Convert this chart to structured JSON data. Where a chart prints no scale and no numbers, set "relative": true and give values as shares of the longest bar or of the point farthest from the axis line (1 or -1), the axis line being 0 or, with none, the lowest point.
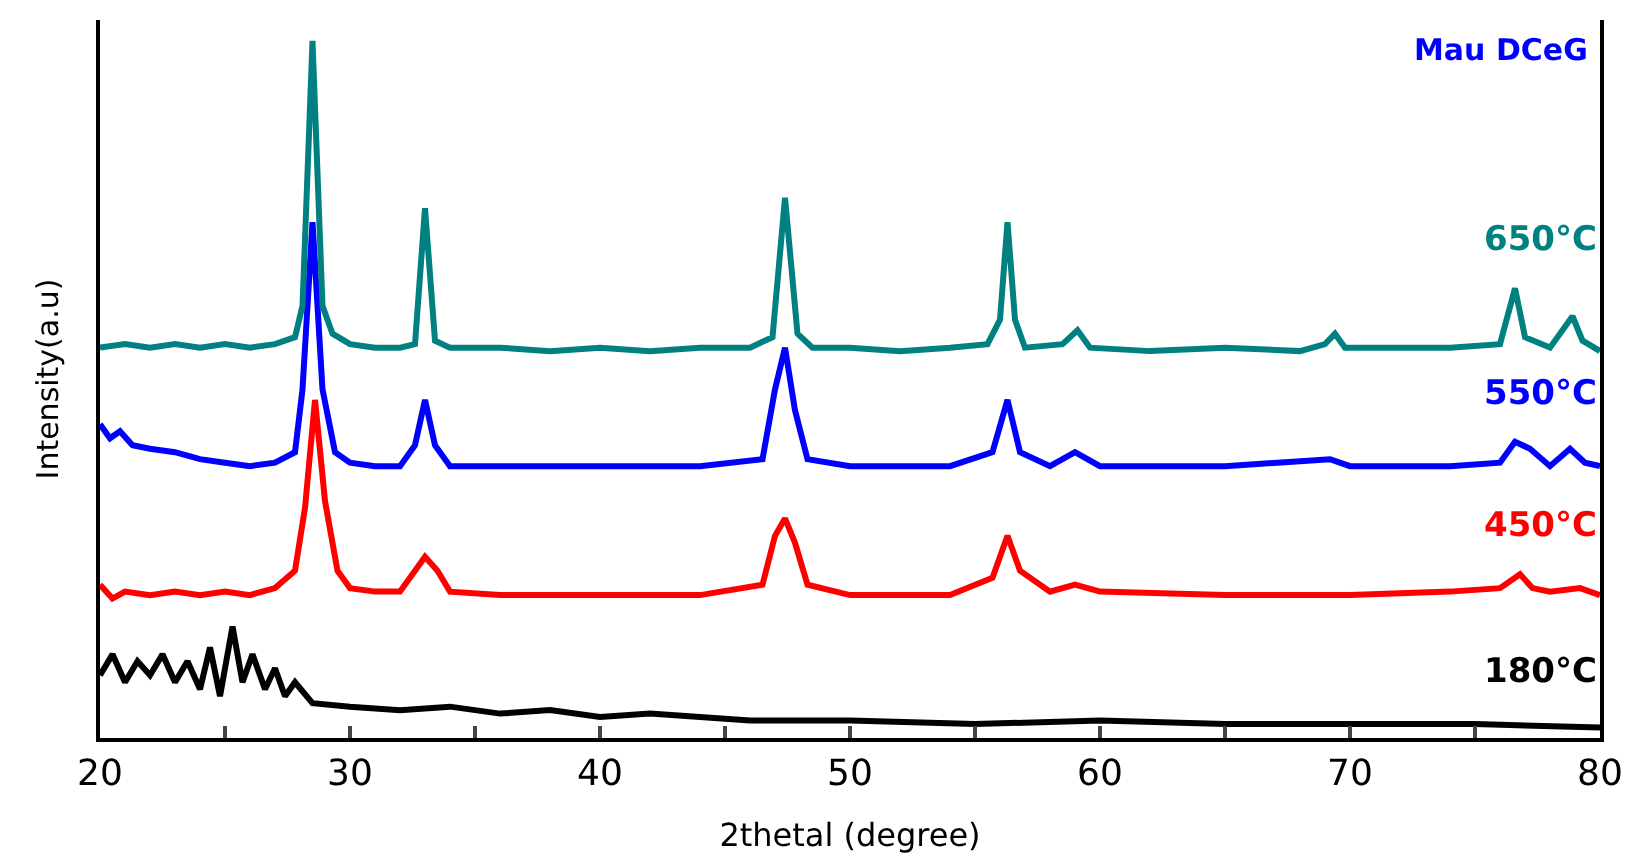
{
  "chart_data": {
    "type": "line",
    "relative": true,
    "xlabel": "2thetal (degree)",
    "ylabel": "Intensity(a.u)",
    "annotations": [
      "Mau DCeG"
    ],
    "xlim": [
      20,
      80
    ],
    "xticks": [
      20,
      {
        "value": 25,
        "label": null
      },
      30,
      {
        "value": 35,
        "label": null
      },
      40,
      {
        "value": 45,
        "label": null
      },
      50,
      {
        "value": 55,
        "label": null
      },
      60,
      {
        "value": 65,
        "label": null
      },
      70,
      {
        "value": 75,
        "label": null
      },
      80
    ],
    "tick_labels": "x",
    "legend": false,
    "marker": "none",
    "line_style": "solid",
    "series": [
      {
        "name": "180°C",
        "color": "#000000",
        "x": [
          20,
          20.5,
          21,
          21.5,
          22,
          22.5,
          23,
          23.5,
          24,
          24.4,
          24.8,
          25.3,
          25.7,
          26.1,
          26.6,
          27.0,
          27.4,
          27.8,
          28.5,
          30,
          32,
          34,
          36,
          38,
          40,
          42,
          44,
          46,
          48,
          50,
          55,
          60,
          65,
          70,
          75,
          80
        ],
        "values": [
          0.09,
          0.12,
          0.08,
          0.11,
          0.09,
          0.12,
          0.08,
          0.11,
          0.07,
          0.13,
          0.06,
          0.16,
          0.08,
          0.12,
          0.07,
          0.1,
          0.06,
          0.08,
          0.05,
          0.045,
          0.04,
          0.045,
          0.035,
          0.04,
          0.03,
          0.035,
          0.03,
          0.025,
          0.025,
          0.025,
          0.02,
          0.025,
          0.02,
          0.02,
          0.02,
          0.015
        ]
      },
      {
        "name": "450°C",
        "color": "#ff0000",
        "x": [
          20,
          20.5,
          21,
          22,
          23,
          24,
          25,
          26,
          27,
          27.8,
          28.2,
          28.6,
          29.0,
          29.5,
          30,
          31,
          32,
          32.6,
          33.0,
          33.5,
          34,
          36,
          40,
          44,
          46.5,
          47.0,
          47.4,
          47.8,
          48.3,
          50,
          54,
          55.7,
          56.3,
          56.8,
          58,
          59,
          60,
          65,
          70,
          74,
          76,
          76.8,
          77.3,
          78,
          79.2,
          80
        ],
        "values": [
          0.22,
          0.2,
          0.21,
          0.205,
          0.21,
          0.205,
          0.21,
          0.205,
          0.215,
          0.24,
          0.33,
          0.485,
          0.34,
          0.24,
          0.215,
          0.21,
          0.21,
          0.24,
          0.26,
          0.24,
          0.21,
          0.205,
          0.205,
          0.205,
          0.22,
          0.29,
          0.315,
          0.28,
          0.22,
          0.205,
          0.205,
          0.23,
          0.29,
          0.24,
          0.21,
          0.22,
          0.21,
          0.205,
          0.205,
          0.21,
          0.215,
          0.235,
          0.215,
          0.21,
          0.215,
          0.205
        ]
      },
      {
        "name": "550°C",
        "color": "#0000ff",
        "x": [
          20,
          20.4,
          20.8,
          21.3,
          22,
          23,
          24,
          25,
          26,
          27,
          27.8,
          28.1,
          28.5,
          28.9,
          29.4,
          30,
          31,
          32,
          32.6,
          33.0,
          33.4,
          34,
          36,
          40,
          44,
          46.5,
          47.0,
          47.4,
          47.8,
          48.3,
          50,
          54,
          55.7,
          56.3,
          56.8,
          58,
          59,
          60,
          65,
          69.2,
          70,
          74,
          76,
          76.6,
          77.2,
          78,
          78.8,
          79.4,
          80
        ],
        "values": [
          0.45,
          0.43,
          0.44,
          0.42,
          0.415,
          0.41,
          0.4,
          0.395,
          0.39,
          0.395,
          0.41,
          0.5,
          0.74,
          0.5,
          0.41,
          0.395,
          0.39,
          0.39,
          0.42,
          0.485,
          0.42,
          0.39,
          0.39,
          0.39,
          0.39,
          0.4,
          0.5,
          0.56,
          0.47,
          0.4,
          0.39,
          0.39,
          0.41,
          0.485,
          0.41,
          0.39,
          0.41,
          0.39,
          0.39,
          0.4,
          0.39,
          0.39,
          0.395,
          0.425,
          0.415,
          0.39,
          0.415,
          0.395,
          0.39
        ]
      },
      {
        "name": "650°C",
        "color": "#008080",
        "x": [
          20,
          21,
          22,
          23,
          24,
          25,
          26,
          27,
          27.8,
          28.1,
          28.5,
          28.9,
          29.3,
          30,
          31,
          32,
          32.6,
          33.0,
          33.4,
          34,
          36,
          38,
          40,
          42,
          44,
          46,
          46.9,
          47.4,
          47.9,
          48.5,
          50,
          52,
          54,
          55.5,
          56.0,
          56.3,
          56.6,
          57,
          58.5,
          59.1,
          59.6,
          62,
          65,
          68,
          69.0,
          69.4,
          69.8,
          72,
          74,
          76,
          76.6,
          77.0,
          78,
          78.9,
          79.3,
          80
        ],
        "values": [
          0.56,
          0.565,
          0.56,
          0.565,
          0.56,
          0.565,
          0.56,
          0.565,
          0.575,
          0.62,
          1.0,
          0.62,
          0.58,
          0.565,
          0.56,
          0.56,
          0.565,
          0.76,
          0.57,
          0.56,
          0.56,
          0.555,
          0.56,
          0.555,
          0.56,
          0.56,
          0.575,
          0.775,
          0.58,
          0.56,
          0.56,
          0.555,
          0.56,
          0.565,
          0.6,
          0.74,
          0.6,
          0.56,
          0.565,
          0.585,
          0.56,
          0.555,
          0.56,
          0.555,
          0.565,
          0.58,
          0.56,
          0.56,
          0.56,
          0.565,
          0.645,
          0.575,
          0.56,
          0.605,
          0.57,
          0.555
        ]
      }
    ]
  }
}
